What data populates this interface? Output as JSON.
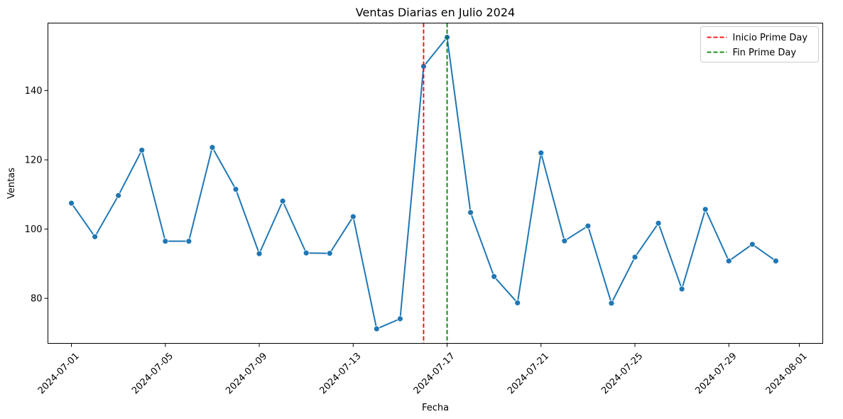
{
  "chart_data": {
    "type": "line",
    "title": "Ventas Diarias en Julio 2024",
    "xlabel": "Fecha",
    "ylabel": "Ventas",
    "x": [
      "2024-07-01",
      "2024-07-02",
      "2024-07-03",
      "2024-07-04",
      "2024-07-05",
      "2024-07-06",
      "2024-07-07",
      "2024-07-08",
      "2024-07-09",
      "2024-07-10",
      "2024-07-11",
      "2024-07-12",
      "2024-07-13",
      "2024-07-14",
      "2024-07-15",
      "2024-07-16",
      "2024-07-17",
      "2024-07-18",
      "2024-07-19",
      "2024-07-20",
      "2024-07-21",
      "2024-07-22",
      "2024-07-23",
      "2024-07-24",
      "2024-07-25",
      "2024-07-26",
      "2024-07-27",
      "2024-07-28",
      "2024-07-29",
      "2024-07-30",
      "2024-07-31"
    ],
    "series": [
      {
        "values": [
          107.5,
          97.8,
          109.7,
          122.8,
          96.5,
          96.5,
          123.6,
          111.5,
          92.9,
          108.1,
          93.1,
          93.0,
          103.6,
          71.2,
          74.1,
          147.0,
          155.4,
          104.8,
          86.3,
          78.7,
          122.0,
          96.6,
          100.9,
          78.6,
          91.9,
          101.7,
          82.7,
          105.7,
          90.8,
          95.6,
          90.8
        ],
        "color": "#1f77b4"
      }
    ],
    "xlim": [
      "2024-06-30T00:00",
      "2024-08-02T00:00"
    ],
    "ylim": [
      67.0,
      159.5
    ],
    "xticks": [
      "2024-07-01",
      "2024-07-05",
      "2024-07-09",
      "2024-07-13",
      "2024-07-17",
      "2024-07-21",
      "2024-07-25",
      "2024-07-29",
      "2024-08-01"
    ],
    "yticks": [
      80,
      100,
      120,
      140
    ],
    "vlines": [
      {
        "x": "2024-07-16",
        "label": "Inicio Prime Day",
        "color": "#ff0000",
        "style": "dashed"
      },
      {
        "x": "2024-07-17",
        "label": "Fin Prime Day",
        "color": "#008000",
        "style": "dashed"
      }
    ],
    "legend": "top-right",
    "grid": false
  }
}
